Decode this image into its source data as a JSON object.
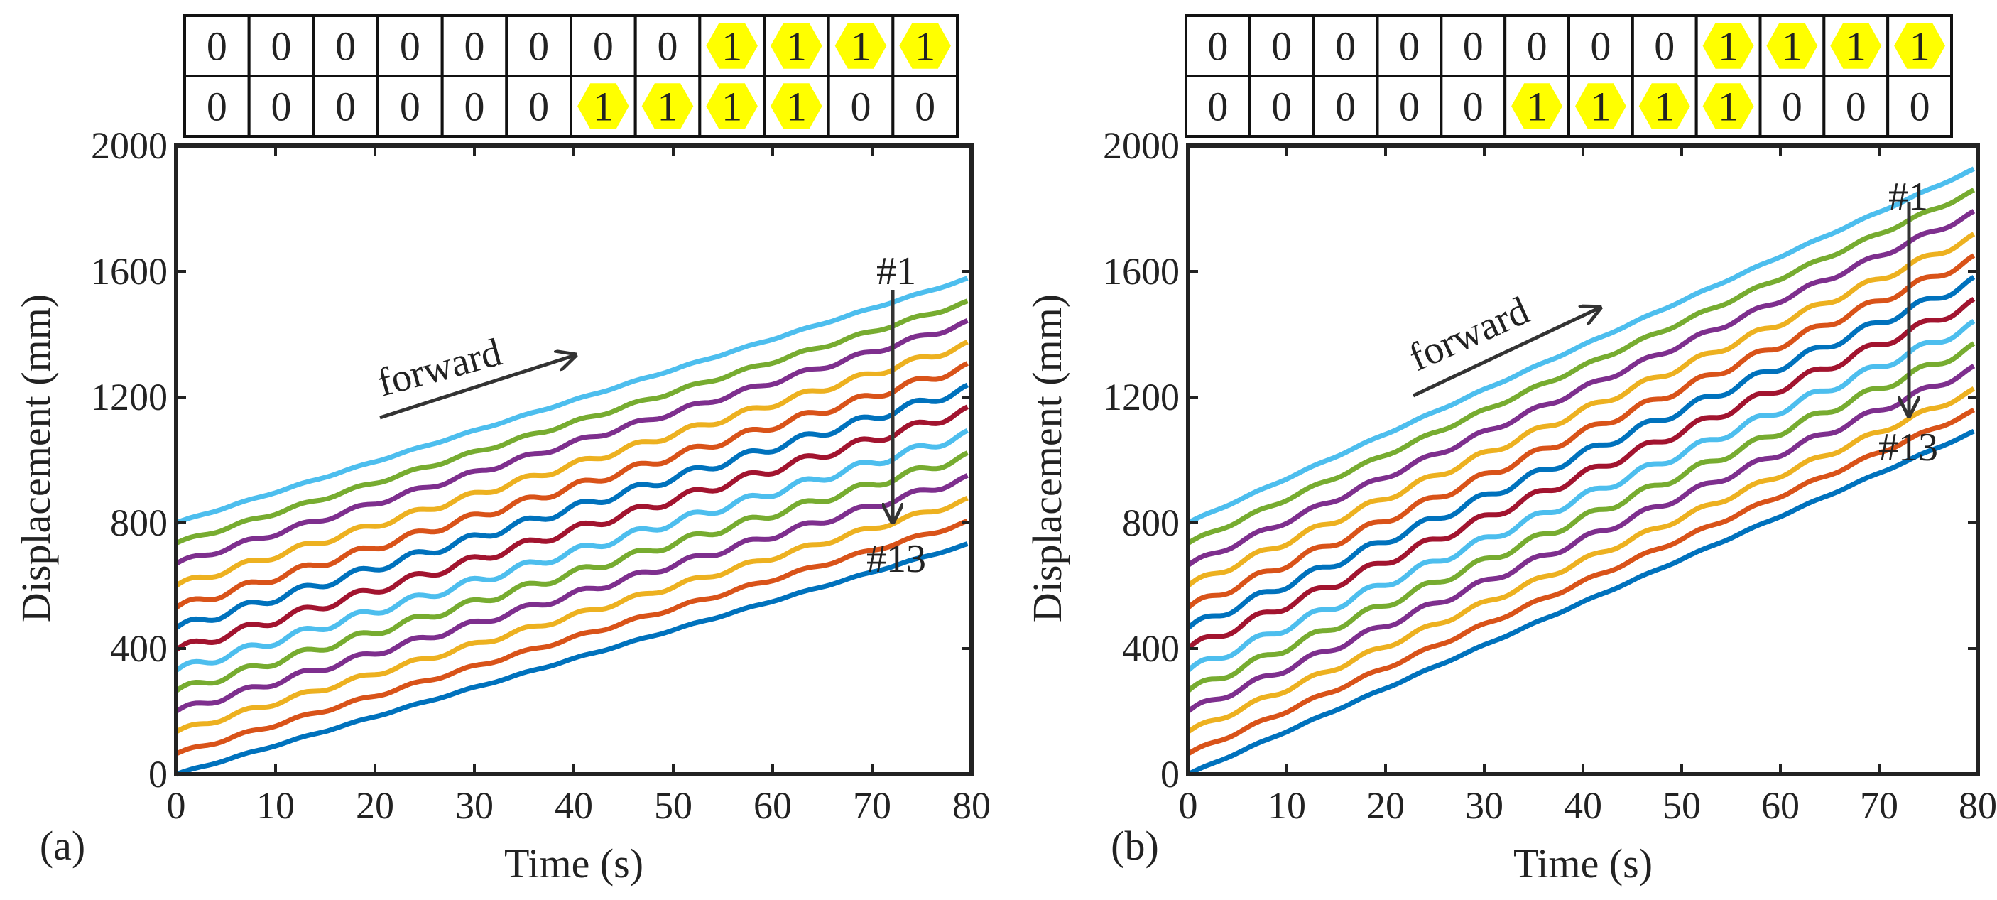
{
  "colors": {
    "c1": "#4DBEEE",
    "c2": "#77AC30",
    "c3": "#7E2F8E",
    "c4": "#EDB120",
    "c5": "#D95319",
    "c6": "#0072BD",
    "c7": "#A2142F",
    "highlight": "#FFFF00",
    "axis": "#222222",
    "arrow": "#333333"
  },
  "chart_data": [
    {
      "type": "line",
      "panel_label": "(a)",
      "xlabel": "Time (s)",
      "ylabel": "Displacement (mm)",
      "xlim": [
        0,
        80
      ],
      "ylim": [
        0,
        2000
      ],
      "xticks": [
        "0",
        "10",
        "20",
        "30",
        "40",
        "50",
        "60",
        "70",
        "80"
      ],
      "yticks": [
        "0",
        "400",
        "800",
        "1200",
        "1600",
        "2000"
      ],
      "grid": false,
      "pattern_rows": [
        [
          "0",
          "0",
          "0",
          "0",
          "0",
          "0",
          "0",
          "0",
          "1",
          "1",
          "1",
          "1"
        ],
        [
          "0",
          "0",
          "0",
          "0",
          "0",
          "0",
          "1",
          "1",
          "1",
          "1",
          "0",
          "0"
        ]
      ],
      "annotations": {
        "forward": "forward",
        "first": "#1",
        "last": "#13"
      },
      "series": [
        {
          "start": 800,
          "end": 1580,
          "color": "c1"
        },
        {
          "start": 735,
          "end": 1505,
          "color": "c2"
        },
        {
          "start": 670,
          "end": 1440,
          "color": "c3"
        },
        {
          "start": 600,
          "end": 1370,
          "color": "c4"
        },
        {
          "start": 530,
          "end": 1300,
          "color": "c5"
        },
        {
          "start": 465,
          "end": 1230,
          "color": "c6"
        },
        {
          "start": 395,
          "end": 1160,
          "color": "c7"
        },
        {
          "start": 330,
          "end": 1085,
          "color": "c1"
        },
        {
          "start": 265,
          "end": 1015,
          "color": "c2"
        },
        {
          "start": 200,
          "end": 945,
          "color": "c3"
        },
        {
          "start": 135,
          "end": 875,
          "color": "c4"
        },
        {
          "start": 65,
          "end": 805,
          "color": "c5"
        },
        {
          "start": 0,
          "end": 735,
          "color": "c6"
        }
      ]
    },
    {
      "type": "line",
      "panel_label": "(b)",
      "xlabel": "Time (s)",
      "ylabel": "Displacement (mm)",
      "xlim": [
        0,
        80
      ],
      "ylim": [
        0,
        2000
      ],
      "xticks": [
        "0",
        "10",
        "20",
        "30",
        "40",
        "50",
        "60",
        "70",
        "80"
      ],
      "yticks": [
        "0",
        "400",
        "800",
        "1200",
        "1600",
        "2000"
      ],
      "grid": false,
      "pattern_rows": [
        [
          "0",
          "0",
          "0",
          "0",
          "0",
          "0",
          "0",
          "0",
          "1",
          "1",
          "1",
          "1"
        ],
        [
          "0",
          "0",
          "0",
          "0",
          "0",
          "1",
          "1",
          "1",
          "1",
          "0",
          "0",
          "0"
        ]
      ],
      "annotations": {
        "forward": "forward",
        "first": "#1",
        "last": "#13"
      },
      "series": [
        {
          "start": 800,
          "end": 1930,
          "color": "c1"
        },
        {
          "start": 735,
          "end": 1860,
          "color": "c2"
        },
        {
          "start": 665,
          "end": 1790,
          "color": "c3"
        },
        {
          "start": 600,
          "end": 1715,
          "color": "c4"
        },
        {
          "start": 530,
          "end": 1645,
          "color": "c5"
        },
        {
          "start": 465,
          "end": 1575,
          "color": "c6"
        },
        {
          "start": 400,
          "end": 1505,
          "color": "c7"
        },
        {
          "start": 330,
          "end": 1435,
          "color": "c1"
        },
        {
          "start": 265,
          "end": 1365,
          "color": "c2"
        },
        {
          "start": 200,
          "end": 1295,
          "color": "c3"
        },
        {
          "start": 135,
          "end": 1225,
          "color": "c4"
        },
        {
          "start": 65,
          "end": 1160,
          "color": "c5"
        },
        {
          "start": 0,
          "end": 1095,
          "color": "c6"
        }
      ]
    }
  ]
}
